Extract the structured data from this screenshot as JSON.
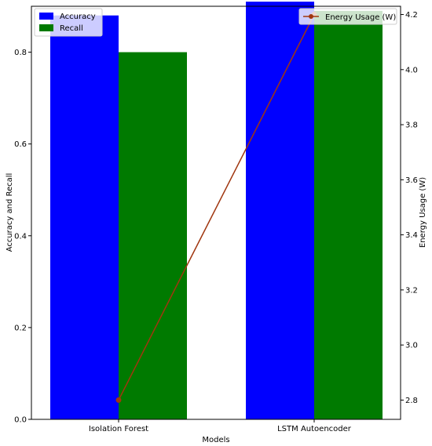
{
  "chart_data": {
    "type": "bar",
    "categories": [
      "Isolation Forest",
      "LSTM Autoencoder"
    ],
    "series": [
      {
        "name": "Accuracy",
        "axis": "left",
        "color": "#0000ff",
        "values": [
          0.88,
          0.91
        ]
      },
      {
        "name": "Recall",
        "axis": "left",
        "color": "#007a00",
        "values": [
          0.8,
          0.89
        ]
      }
    ],
    "line_series": {
      "name": "Energy Usage (W)",
      "axis": "right",
      "color": "#a0360f",
      "values": [
        2.8,
        4.2
      ]
    },
    "xlabel": "Models",
    "ylabel": "Accuracy and Recall",
    "y2label": "Energy Usage (W)",
    "ylim": [
      0,
      0.9
    ],
    "y2lim": [
      2.73,
      4.23
    ],
    "yticks": [
      "0.0",
      "0.2",
      "0.4",
      "0.6",
      "0.8"
    ],
    "y2ticks": [
      "2.8",
      "3.0",
      "3.2",
      "3.4",
      "3.6",
      "3.8",
      "4.0",
      "4.2"
    ],
    "legend_left_placement": "top-left",
    "legend_right_placement": "top-right",
    "grid": false
  }
}
